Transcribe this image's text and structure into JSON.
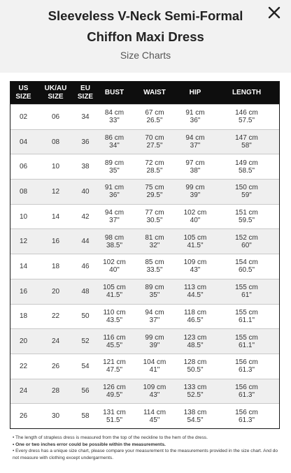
{
  "header": {
    "title_line1": "Sleeveless V-Neck Semi-Formal",
    "title_line2": "Chiffon Maxi Dress",
    "subtitle": "Size Charts",
    "close_icon": "close-x-icon"
  },
  "table": {
    "columns": [
      [
        "US",
        "SIZE"
      ],
      [
        "UK/AU",
        "SIZE"
      ],
      [
        "EU",
        "SIZE"
      ],
      [
        "BUST",
        ""
      ],
      [
        "WAIST",
        ""
      ],
      [
        "HIP",
        ""
      ],
      [
        "LENGTH",
        ""
      ]
    ],
    "rows": [
      [
        "02",
        "06",
        "34",
        "84 cm",
        "33\"",
        "67 cm",
        "26.5\"",
        "91 cm",
        "36\"",
        "146 cm",
        "57.5\""
      ],
      [
        "04",
        "08",
        "36",
        "86 cm",
        "34\"",
        "70 cm",
        "27.5\"",
        "94 cm",
        "37\"",
        "147 cm",
        "58\""
      ],
      [
        "06",
        "10",
        "38",
        "89 cm",
        "35\"",
        "72 cm",
        "28.5\"",
        "97 cm",
        "38\"",
        "149 cm",
        "58.5\""
      ],
      [
        "08",
        "12",
        "40",
        "91 cm",
        "36\"",
        "75 cm",
        "29.5\"",
        "99 cm",
        "39\"",
        "150 cm",
        "59\""
      ],
      [
        "10",
        "14",
        "42",
        "94 cm",
        "37\"",
        "77 cm",
        "30.5\"",
        "102 cm",
        "40\"",
        "151 cm",
        "59.5\""
      ],
      [
        "12",
        "16",
        "44",
        "98 cm",
        "38.5\"",
        "81 cm",
        "32\"",
        "105 cm",
        "41.5\"",
        "152 cm",
        "60\""
      ],
      [
        "14",
        "18",
        "46",
        "102 cm",
        "40\"",
        "85 cm",
        "33.5\"",
        "109 cm",
        "43\"",
        "154 cm",
        "60.5\""
      ],
      [
        "16",
        "20",
        "48",
        "105 cm",
        "41.5\"",
        "89 cm",
        "35\"",
        "113 cm",
        "44.5\"",
        "155 cm",
        "61\""
      ],
      [
        "18",
        "22",
        "50",
        "110 cm",
        "43.5\"",
        "94 cm",
        "37\"",
        "118 cm",
        "46.5\"",
        "155 cm",
        "61.1\""
      ],
      [
        "20",
        "24",
        "52",
        "116 cm",
        "45.5\"",
        "99 cm",
        "39\"",
        "123 cm",
        "48.5\"",
        "155 cm",
        "61.1\""
      ],
      [
        "22",
        "26",
        "54",
        "121 cm",
        "47.5\"",
        "104 cm",
        "41\"",
        "128 cm",
        "50.5\"",
        "156 cm",
        "61.3\""
      ],
      [
        "24",
        "28",
        "56",
        "126 cm",
        "49.5\"",
        "109 cm",
        "43\"",
        "133 cm",
        "52.5\"",
        "156 cm",
        "61.3\""
      ],
      [
        "26",
        "30",
        "58",
        "131 cm",
        "51.5\"",
        "114 cm",
        "45\"",
        "138 cm",
        "54.5\"",
        "156 cm",
        "61.3\""
      ]
    ]
  },
  "notes": [
    "• The length of strapless dress is measured from the top of the neckline to the hem of the dress.",
    "• One or two inches error could be possible within the measurements.",
    "• Every dress has a unique size chart, please compare your measurement to the measurements provided in the size chart. And do not measure with clothing except undergarments."
  ]
}
